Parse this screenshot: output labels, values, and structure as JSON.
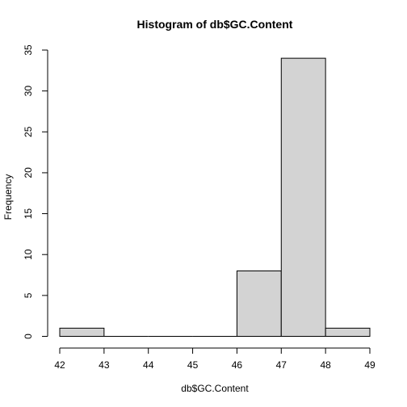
{
  "chart_data": {
    "type": "bar",
    "title": "Histogram of db$GC.Content",
    "xlabel": "db$GC.Content",
    "ylabel": "Frequency",
    "bins": [
      {
        "start": 42,
        "end": 43,
        "count": 1
      },
      {
        "start": 43,
        "end": 44,
        "count": 0
      },
      {
        "start": 44,
        "end": 45,
        "count": 0
      },
      {
        "start": 45,
        "end": 46,
        "count": 0
      },
      {
        "start": 46,
        "end": 47,
        "count": 8
      },
      {
        "start": 47,
        "end": 48,
        "count": 34
      },
      {
        "start": 48,
        "end": 49,
        "count": 1
      }
    ],
    "xlim": [
      42,
      49
    ],
    "ylim": [
      0,
      35
    ],
    "x_ticks": [
      "42",
      "43",
      "44",
      "45",
      "46",
      "47",
      "48",
      "49"
    ],
    "y_ticks": [
      "0",
      "5",
      "10",
      "15",
      "20",
      "25",
      "30",
      "35"
    ],
    "grid": false,
    "colors": {
      "bar_fill": "#d3d3d3",
      "bar_stroke": "#000000"
    }
  }
}
